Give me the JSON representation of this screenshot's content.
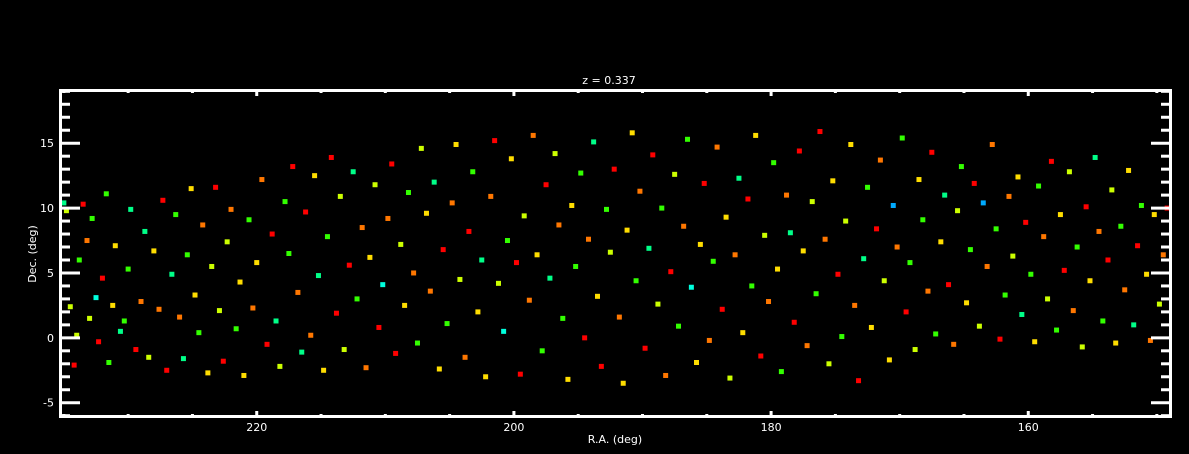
{
  "chart_data": {
    "type": "scatter",
    "title": "z = 0.337",
    "xlabel": "R.A. (deg)",
    "ylabel": "Dec. (deg)",
    "xlim": [
      235.3,
      148.9
    ],
    "ylim": [
      -6.1,
      19.1
    ],
    "x_reversed": true,
    "xticks": [
      220,
      200,
      180,
      160
    ],
    "yticks": [
      -5,
      0,
      5,
      10,
      15
    ],
    "grid": false,
    "background": "#000000",
    "axis_color": "#ffffff",
    "color_scale": [
      "#ff0000",
      "#ff7700",
      "#ffdd00",
      "#ccff00",
      "#33ff00",
      "#00ff88",
      "#00ffdd",
      "#00aaff",
      "#2233ff",
      "#660099"
    ],
    "points": [
      [
        235,
        10.4,
        5
      ],
      [
        234.8,
        9.8,
        3
      ],
      [
        234.5,
        2.4,
        3
      ],
      [
        234.2,
        -2.1,
        0
      ],
      [
        234,
        0.2,
        3
      ],
      [
        233.8,
        6,
        4
      ],
      [
        233.5,
        10.3,
        0
      ],
      [
        233.2,
        7.5,
        1
      ],
      [
        233,
        1.5,
        3
      ],
      [
        232.8,
        9.2,
        4
      ],
      [
        232.5,
        3.1,
        6
      ],
      [
        232.3,
        -0.3,
        0
      ],
      [
        232,
        4.6,
        0
      ],
      [
        231.7,
        11.1,
        4
      ],
      [
        231.5,
        -1.9,
        4
      ],
      [
        231.2,
        2.5,
        2
      ],
      [
        231,
        7.1,
        2
      ],
      [
        230.6,
        0.5,
        5
      ],
      [
        230.3,
        1.3,
        4
      ],
      [
        230,
        5.3,
        4
      ],
      [
        229.8,
        9.9,
        5
      ],
      [
        229.4,
        -0.9,
        0
      ],
      [
        229,
        2.8,
        1
      ],
      [
        228.7,
        8.2,
        5
      ],
      [
        228.4,
        -1.5,
        3
      ],
      [
        228,
        6.7,
        2
      ],
      [
        227.6,
        2.2,
        1
      ],
      [
        227.3,
        10.6,
        0
      ],
      [
        227,
        -2.5,
        0
      ],
      [
        226.6,
        4.9,
        5
      ],
      [
        226.3,
        9.5,
        4
      ],
      [
        226,
        1.6,
        1
      ],
      [
        225.7,
        -1.6,
        5
      ],
      [
        225.4,
        6.4,
        4
      ],
      [
        225.1,
        11.5,
        2
      ],
      [
        224.8,
        3.3,
        2
      ],
      [
        224.5,
        0.4,
        4
      ],
      [
        224.2,
        8.7,
        1
      ],
      [
        223.8,
        -2.7,
        2
      ],
      [
        223.5,
        5.5,
        3
      ],
      [
        223.2,
        11.6,
        0
      ],
      [
        222.9,
        2.1,
        3
      ],
      [
        222.6,
        -1.8,
        0
      ],
      [
        222.3,
        7.4,
        3
      ],
      [
        222,
        9.9,
        1
      ],
      [
        221.6,
        0.7,
        4
      ],
      [
        221.3,
        4.3,
        2
      ],
      [
        221,
        -2.9,
        2
      ],
      [
        220.6,
        9.1,
        4
      ],
      [
        220.3,
        2.3,
        1
      ],
      [
        220,
        5.8,
        2
      ],
      [
        219.6,
        12.2,
        1
      ],
      [
        219.2,
        -0.5,
        0
      ],
      [
        218.8,
        8,
        0
      ],
      [
        218.5,
        1.3,
        5
      ],
      [
        218.2,
        -2.2,
        3
      ],
      [
        217.8,
        10.5,
        4
      ],
      [
        217.5,
        6.5,
        4
      ],
      [
        217.2,
        13.2,
        0
      ],
      [
        216.8,
        3.5,
        1
      ],
      [
        216.5,
        -1.1,
        5
      ],
      [
        216.2,
        9.7,
        0
      ],
      [
        215.8,
        0.2,
        1
      ],
      [
        215.5,
        12.5,
        2
      ],
      [
        215.2,
        4.8,
        5
      ],
      [
        214.8,
        -2.5,
        2
      ],
      [
        214.5,
        7.8,
        4
      ],
      [
        214.2,
        13.9,
        0
      ],
      [
        213.8,
        1.9,
        0
      ],
      [
        213.5,
        10.9,
        3
      ],
      [
        213.2,
        -0.9,
        3
      ],
      [
        212.8,
        5.6,
        0
      ],
      [
        212.5,
        12.8,
        5
      ],
      [
        212.2,
        3,
        4
      ],
      [
        211.8,
        8.5,
        1
      ],
      [
        211.5,
        -2.3,
        1
      ],
      [
        211.2,
        6.2,
        2
      ],
      [
        210.8,
        11.8,
        3
      ],
      [
        210.5,
        0.8,
        0
      ],
      [
        210.2,
        4.1,
        6
      ],
      [
        209.8,
        9.2,
        1
      ],
      [
        209.5,
        13.4,
        0
      ],
      [
        209.2,
        -1.2,
        0
      ],
      [
        208.8,
        7.2,
        3
      ],
      [
        208.5,
        2.5,
        2
      ],
      [
        208.2,
        11.2,
        4
      ],
      [
        207.8,
        5,
        1
      ],
      [
        207.5,
        -0.4,
        4
      ],
      [
        207.2,
        14.6,
        3
      ],
      [
        206.8,
        9.6,
        2
      ],
      [
        206.5,
        3.6,
        1
      ],
      [
        206.2,
        12,
        5
      ],
      [
        205.8,
        -2.4,
        2
      ],
      [
        205.5,
        6.8,
        0
      ],
      [
        205.2,
        1.1,
        4
      ],
      [
        204.8,
        10.4,
        1
      ],
      [
        204.5,
        14.9,
        2
      ],
      [
        204.2,
        4.5,
        3
      ],
      [
        203.8,
        -1.5,
        1
      ],
      [
        203.5,
        8.2,
        0
      ],
      [
        203.2,
        12.8,
        4
      ],
      [
        202.8,
        2,
        2
      ],
      [
        202.5,
        6,
        5
      ],
      [
        202.2,
        -3,
        2
      ],
      [
        201.8,
        10.9,
        1
      ],
      [
        201.5,
        15.2,
        0
      ],
      [
        201.2,
        4.2,
        3
      ],
      [
        200.8,
        0.5,
        6
      ],
      [
        200.5,
        7.5,
        4
      ],
      [
        200.2,
        13.8,
        2
      ],
      [
        199.8,
        5.8,
        0
      ],
      [
        199.5,
        -2.8,
        0
      ],
      [
        199.2,
        9.4,
        3
      ],
      [
        198.8,
        2.9,
        1
      ],
      [
        198.5,
        15.6,
        1
      ],
      [
        198.2,
        6.4,
        2
      ],
      [
        197.8,
        -1,
        4
      ],
      [
        197.5,
        11.8,
        0
      ],
      [
        197.2,
        4.6,
        5
      ],
      [
        196.8,
        14.2,
        3
      ],
      [
        196.5,
        8.7,
        1
      ],
      [
        196.2,
        1.5,
        4
      ],
      [
        195.8,
        -3.2,
        2
      ],
      [
        195.5,
        10.2,
        2
      ],
      [
        195.2,
        5.5,
        4
      ],
      [
        194.8,
        12.7,
        4
      ],
      [
        194.5,
        0,
        0
      ],
      [
        194.2,
        7.6,
        1
      ],
      [
        193.8,
        15.1,
        5
      ],
      [
        193.5,
        3.2,
        2
      ],
      [
        193.2,
        -2.2,
        0
      ],
      [
        192.8,
        9.9,
        4
      ],
      [
        192.5,
        6.6,
        3
      ],
      [
        192.2,
        13,
        0
      ],
      [
        191.8,
        1.6,
        1
      ],
      [
        191.5,
        -3.5,
        2
      ],
      [
        191.2,
        8.3,
        2
      ],
      [
        190.8,
        15.8,
        2
      ],
      [
        190.5,
        4.4,
        4
      ],
      [
        190.2,
        11.3,
        1
      ],
      [
        189.8,
        -0.8,
        0
      ],
      [
        189.5,
        6.9,
        5
      ],
      [
        189.2,
        14.1,
        0
      ],
      [
        188.8,
        2.6,
        3
      ],
      [
        188.5,
        10,
        4
      ],
      [
        188.2,
        -2.9,
        1
      ],
      [
        187.8,
        5.1,
        0
      ],
      [
        187.5,
        12.6,
        3
      ],
      [
        187.2,
        0.9,
        4
      ],
      [
        186.8,
        8.6,
        1
      ],
      [
        186.5,
        15.3,
        4
      ],
      [
        186.2,
        3.9,
        6
      ],
      [
        185.8,
        -1.9,
        2
      ],
      [
        185.5,
        7.2,
        2
      ],
      [
        185.2,
        11.9,
        0
      ],
      [
        184.8,
        -0.2,
        1
      ],
      [
        184.5,
        5.9,
        4
      ],
      [
        184.2,
        14.7,
        1
      ],
      [
        183.8,
        2.2,
        0
      ],
      [
        183.5,
        9.3,
        2
      ],
      [
        183.2,
        -3.1,
        3
      ],
      [
        182.8,
        6.4,
        1
      ],
      [
        182.5,
        12.3,
        5
      ],
      [
        182.2,
        0.4,
        2
      ],
      [
        181.8,
        10.7,
        0
      ],
      [
        181.5,
        4,
        4
      ],
      [
        181.2,
        15.6,
        2
      ],
      [
        180.8,
        -1.4,
        0
      ],
      [
        180.5,
        7.9,
        3
      ],
      [
        180.2,
        2.8,
        1
      ],
      [
        179.8,
        13.5,
        4
      ],
      [
        179.5,
        5.3,
        2
      ],
      [
        179.2,
        -2.6,
        4
      ],
      [
        178.8,
        11,
        1
      ],
      [
        178.5,
        8.1,
        5
      ],
      [
        178.2,
        1.2,
        0
      ],
      [
        177.8,
        14.4,
        0
      ],
      [
        177.5,
        6.7,
        2
      ],
      [
        177.2,
        -0.6,
        1
      ],
      [
        176.8,
        10.5,
        3
      ],
      [
        176.5,
        3.4,
        4
      ],
      [
        176.2,
        15.9,
        0
      ],
      [
        175.8,
        7.6,
        1
      ],
      [
        175.5,
        -2,
        3
      ],
      [
        175.2,
        12.1,
        2
      ],
      [
        174.8,
        4.9,
        0
      ],
      [
        174.5,
        0.1,
        4
      ],
      [
        174.2,
        9,
        3
      ],
      [
        173.8,
        14.9,
        2
      ],
      [
        173.5,
        2.5,
        1
      ],
      [
        173.2,
        -3.3,
        0
      ],
      [
        172.8,
        6.1,
        5
      ],
      [
        172.5,
        11.6,
        4
      ],
      [
        172.2,
        0.8,
        2
      ],
      [
        171.8,
        8.4,
        0
      ],
      [
        171.5,
        13.7,
        1
      ],
      [
        171.2,
        4.4,
        3
      ],
      [
        170.8,
        -1.7,
        2
      ],
      [
        170.5,
        10.2,
        7
      ],
      [
        170.2,
        7,
        1
      ],
      [
        169.8,
        15.4,
        4
      ],
      [
        169.5,
        2,
        0
      ],
      [
        169.2,
        5.8,
        4
      ],
      [
        168.8,
        -0.9,
        3
      ],
      [
        168.5,
        12.2,
        2
      ],
      [
        168.2,
        9.1,
        4
      ],
      [
        167.8,
        3.6,
        1
      ],
      [
        167.5,
        14.3,
        0
      ],
      [
        167.2,
        0.3,
        4
      ],
      [
        166.8,
        7.4,
        2
      ],
      [
        166.5,
        11,
        5
      ],
      [
        166.2,
        4.1,
        0
      ],
      [
        165.8,
        -0.5,
        1
      ],
      [
        165.5,
        9.8,
        3
      ],
      [
        165.2,
        13.2,
        4
      ],
      [
        164.8,
        2.7,
        2
      ],
      [
        164.5,
        6.8,
        4
      ],
      [
        164.2,
        11.9,
        0
      ],
      [
        163.8,
        0.9,
        3
      ],
      [
        163.5,
        10.4,
        7
      ],
      [
        163.2,
        5.5,
        1
      ],
      [
        162.8,
        14.9,
        1
      ],
      [
        162.5,
        8.4,
        4
      ],
      [
        162.2,
        -0.1,
        0
      ],
      [
        161.8,
        3.3,
        4
      ],
      [
        161.5,
        10.9,
        1
      ],
      [
        161.2,
        6.3,
        3
      ],
      [
        160.8,
        12.4,
        2
      ],
      [
        160.5,
        1.8,
        5
      ],
      [
        160.2,
        8.9,
        0
      ],
      [
        159.8,
        4.9,
        4
      ],
      [
        159.5,
        -0.3,
        2
      ],
      [
        159.2,
        11.7,
        4
      ],
      [
        158.8,
        7.8,
        1
      ],
      [
        158.5,
        3,
        3
      ],
      [
        158.2,
        13.6,
        0
      ],
      [
        157.8,
        0.6,
        4
      ],
      [
        157.5,
        9.5,
        2
      ],
      [
        157.2,
        5.2,
        0
      ],
      [
        156.8,
        12.8,
        3
      ],
      [
        156.5,
        2.1,
        1
      ],
      [
        156.2,
        7,
        4
      ],
      [
        155.8,
        -0.7,
        3
      ],
      [
        155.5,
        10.1,
        0
      ],
      [
        155.2,
        4.4,
        2
      ],
      [
        154.8,
        13.9,
        5
      ],
      [
        154.5,
        8.2,
        1
      ],
      [
        154.2,
        1.3,
        4
      ],
      [
        153.8,
        6,
        0
      ],
      [
        153.5,
        11.4,
        3
      ],
      [
        153.2,
        -0.4,
        2
      ],
      [
        152.8,
        8.6,
        4
      ],
      [
        152.5,
        3.7,
        1
      ],
      [
        152.2,
        12.9,
        2
      ],
      [
        151.8,
        1,
        5
      ],
      [
        151.5,
        7.1,
        0
      ],
      [
        151.2,
        10.2,
        4
      ],
      [
        150.8,
        4.9,
        2
      ],
      [
        150.5,
        -0.2,
        1
      ],
      [
        150.2,
        9.5,
        2
      ],
      [
        149.8,
        2.6,
        3
      ],
      [
        149.5,
        6.4,
        1
      ],
      [
        149.2,
        10,
        0
      ]
    ]
  }
}
